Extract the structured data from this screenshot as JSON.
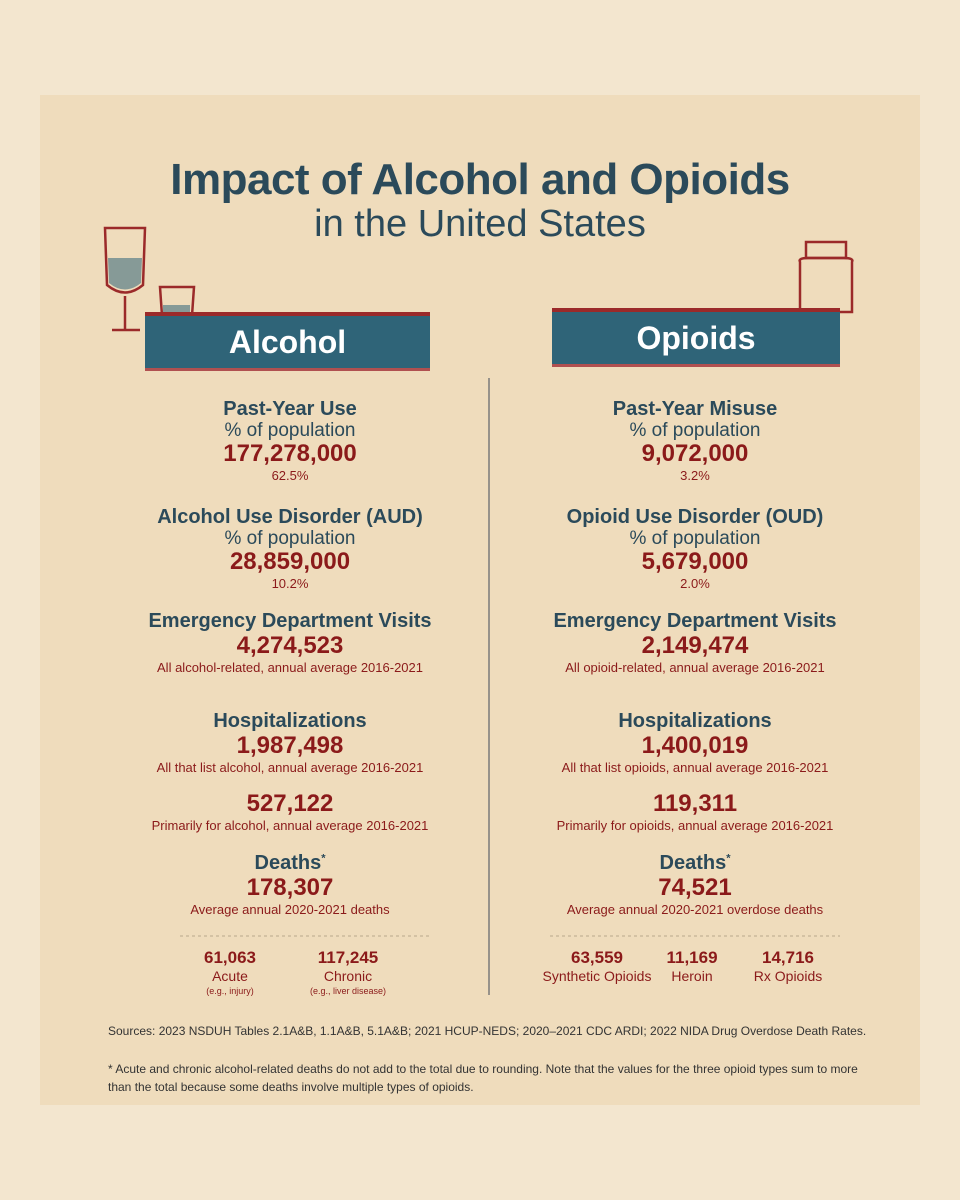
{
  "title": {
    "line1": "Impact of Alcohol and Opioids",
    "line2": "in the United States"
  },
  "columns": [
    {
      "heading": "Alcohol",
      "sections": [
        {
          "title": "Past-Year Use",
          "subtitle": "% of population",
          "stats": [
            {
              "value": "177,278,000",
              "caption": "62.5%"
            }
          ]
        },
        {
          "title": "Alcohol Use Disorder (AUD)",
          "subtitle": "% of population",
          "stats": [
            {
              "value": "28,859,000",
              "caption": "10.2%"
            }
          ]
        },
        {
          "title": "Emergency Department Visits",
          "stats": [
            {
              "value": "4,274,523",
              "caption": "All alcohol-related, annual average 2016-2021"
            }
          ]
        },
        {
          "title": "Hospitalizations",
          "stats": [
            {
              "value": "1,987,498",
              "caption": "All that list alcohol, annual average 2016-2021"
            },
            {
              "value": "527,122",
              "caption": "Primarily for alcohol, annual average 2016-2021"
            }
          ]
        },
        {
          "title": "Deaths",
          "title_mark": "*",
          "stats": [
            {
              "value": "178,307",
              "caption": "Average annual 2020-2021 deaths"
            }
          ]
        }
      ],
      "breakdown": [
        {
          "value": "61,063",
          "label": "Acute",
          "note": "(e.g., injury)"
        },
        {
          "value": "117,245",
          "label": "Chronic",
          "note": "(e.g., liver disease)"
        }
      ]
    },
    {
      "heading": "Opioids",
      "sections": [
        {
          "title": "Past-Year Misuse",
          "subtitle": "% of population",
          "stats": [
            {
              "value": "9,072,000",
              "caption": "3.2%"
            }
          ]
        },
        {
          "title": "Opioid Use Disorder (OUD)",
          "subtitle": "% of population",
          "stats": [
            {
              "value": "5,679,000",
              "caption": "2.0%"
            }
          ]
        },
        {
          "title": "Emergency Department Visits",
          "stats": [
            {
              "value": "2,149,474",
              "caption": "All opioid-related, annual average 2016-2021"
            }
          ]
        },
        {
          "title": "Hospitalizations",
          "stats": [
            {
              "value": "1,400,019",
              "caption": "All that list opioids, annual average 2016-2021"
            },
            {
              "value": "119,311",
              "caption": "Primarily for opioids, annual average 2016-2021"
            }
          ]
        },
        {
          "title": "Deaths",
          "title_mark": "*",
          "stats": [
            {
              "value": "74,521",
              "caption": "Average annual 2020-2021 overdose deaths"
            }
          ]
        }
      ],
      "breakdown": [
        {
          "value": "63,559",
          "label": "Synthetic Opioids"
        },
        {
          "value": "11,169",
          "label": "Heroin"
        },
        {
          "value": "14,716",
          "label": "Rx Opioids"
        }
      ]
    }
  ],
  "footer": {
    "sources": "Sources: 2023 NSDUH Tables 2.1A&B, 1.1A&B, 5.1A&B; 2021 HCUP-NEDS; 2020–2021 CDC ARDI; 2022 NIDA Drug Overdose Death Rates.",
    "note": "* Acute and chronic alcohol-related deaths do not add to the total due to rounding. Note that the values for the three opioid types sum to more than the total because some deaths involve multiple types of opioids."
  }
}
